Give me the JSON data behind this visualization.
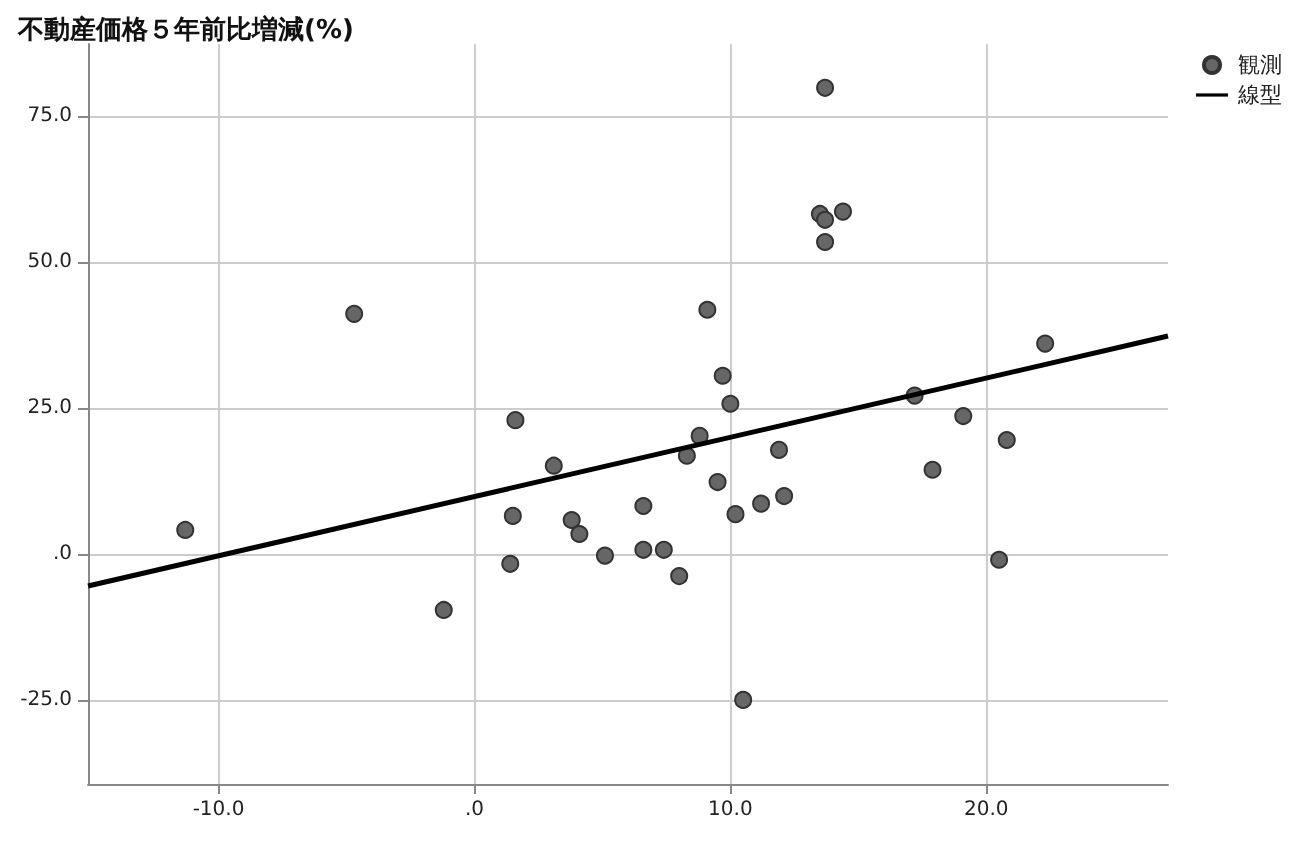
{
  "chart_data": {
    "type": "scatter",
    "title": "不動産価格５年前比増減(%)",
    "xlim": [
      -15.1,
      27.1
    ],
    "ylim": [
      -39.4,
      87.3
    ],
    "xticks": [
      {
        "value": -10,
        "label": "-10.0"
      },
      {
        "value": 0,
        "label": ".0"
      },
      {
        "value": 10,
        "label": "10.0"
      },
      {
        "value": 20,
        "label": "20.0"
      }
    ],
    "yticks": [
      {
        "value": -25,
        "label": "-25.0"
      },
      {
        "value": 0,
        "label": ".0"
      },
      {
        "value": 25,
        "label": "25.0"
      },
      {
        "value": 50,
        "label": "50.0"
      },
      {
        "value": 75,
        "label": "75.0"
      }
    ],
    "grid": true,
    "legend": "top right",
    "marker": "circle",
    "series": [
      {
        "name": "観測",
        "color": "#666666",
        "x": [
          -11.3,
          -4.7,
          -1.2,
          1.4,
          1.5,
          1.6,
          3.1,
          3.8,
          4.1,
          5.1,
          6.6,
          6.6,
          7.4,
          8.0,
          8.3,
          8.8,
          9.1,
          9.5,
          9.7,
          10.0,
          10.2,
          10.5,
          11.2,
          11.9,
          12.1,
          13.5,
          13.7,
          13.7,
          13.7,
          14.4,
          17.2,
          17.9,
          19.1,
          20.5,
          20.8,
          22.3
        ],
        "values": [
          4.1,
          41.1,
          -9.6,
          -1.7,
          6.5,
          22.9,
          15.1,
          5.8,
          3.4,
          -0.3,
          8.2,
          0.7,
          0.7,
          -3.8,
          16.8,
          20.2,
          41.8,
          12.3,
          30.5,
          25.7,
          6.8,
          -25.0,
          8.6,
          17.8,
          9.9,
          58.2,
          57.2,
          53.4,
          79.8,
          58.6,
          27.1,
          14.4,
          23.6,
          -1.0,
          19.5,
          36.0
        ]
      },
      {
        "name": "線型",
        "type": "line",
        "color": "#000000",
        "marker": "none",
        "line_style": "solid",
        "x": [
          -15.1,
          27.1
        ],
        "values": [
          -5.5,
          37.3
        ]
      }
    ]
  }
}
